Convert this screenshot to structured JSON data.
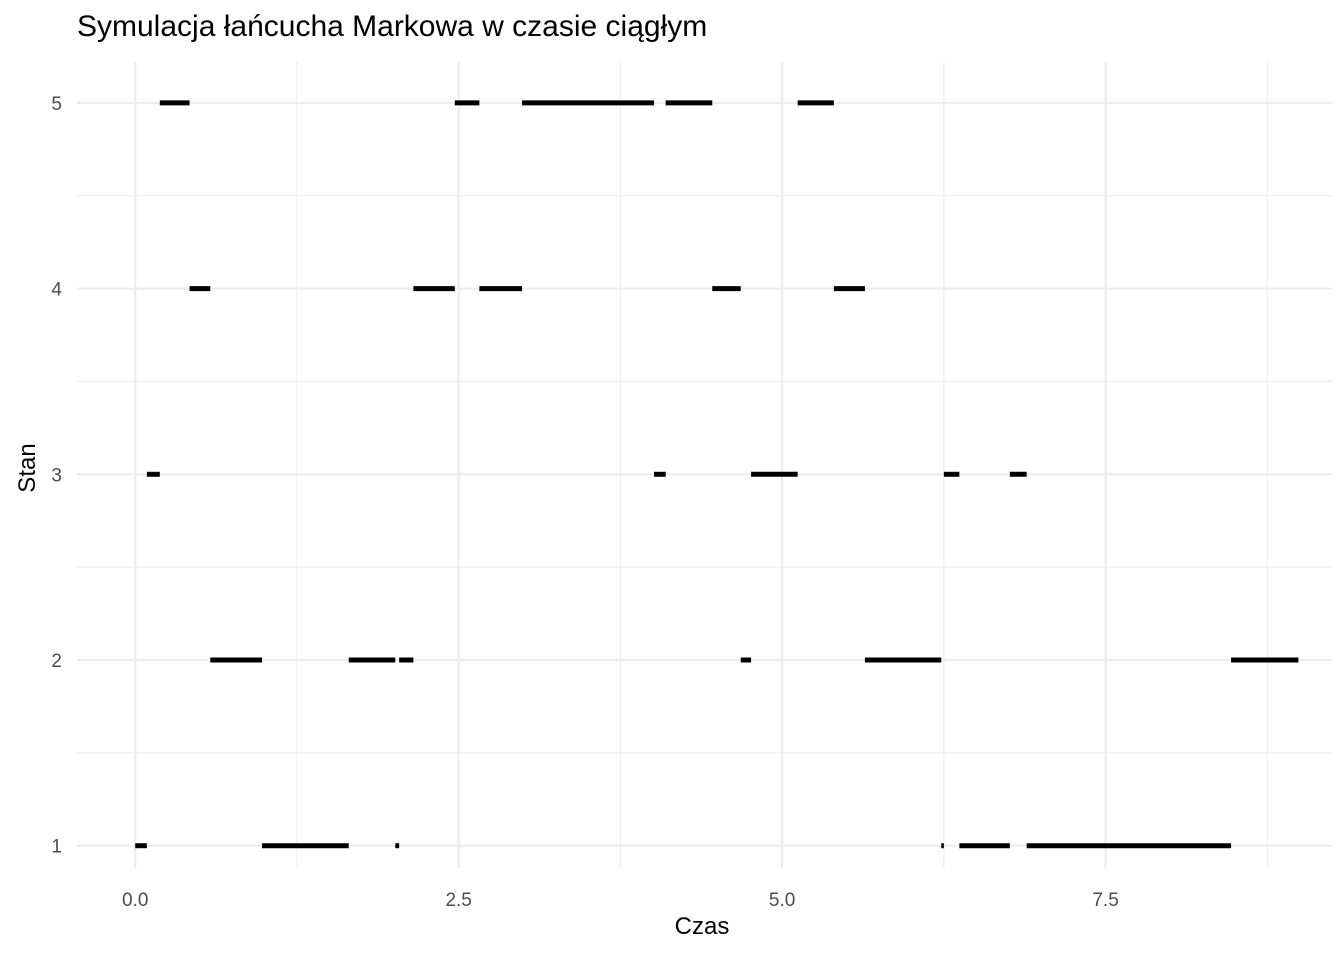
{
  "chart_data": {
    "type": "segment",
    "title": "Symulacja łańcucha Markowa w czasie ciągłym",
    "xlabel": "Czas",
    "ylabel": "Stan",
    "xlim": [
      -0.45,
      9.25
    ],
    "ylim": [
      0.88,
      5.22
    ],
    "x_ticks": [
      0.0,
      2.5,
      5.0,
      7.5
    ],
    "x_tick_labels": [
      "0.0",
      "2.5",
      "5.0",
      "7.5"
    ],
    "y_ticks": [
      1,
      2,
      3,
      4,
      5
    ],
    "y_tick_labels": [
      "1",
      "2",
      "3",
      "4",
      "5"
    ],
    "grid": true,
    "legend": "none",
    "segment_color": "#000000",
    "grid_color": "#ebebeb",
    "segments": [
      {
        "x_start": 0.0,
        "x_end": 0.09,
        "state": 1
      },
      {
        "x_start": 0.09,
        "x_end": 0.19,
        "state": 3
      },
      {
        "x_start": 0.19,
        "x_end": 0.42,
        "state": 5
      },
      {
        "x_start": 0.42,
        "x_end": 0.58,
        "state": 4
      },
      {
        "x_start": 0.58,
        "x_end": 0.98,
        "state": 2
      },
      {
        "x_start": 0.98,
        "x_end": 1.65,
        "state": 1
      },
      {
        "x_start": 1.65,
        "x_end": 2.01,
        "state": 2
      },
      {
        "x_start": 2.01,
        "x_end": 2.04,
        "state": 1
      },
      {
        "x_start": 2.04,
        "x_end": 2.15,
        "state": 2
      },
      {
        "x_start": 2.15,
        "x_end": 2.47,
        "state": 4
      },
      {
        "x_start": 2.47,
        "x_end": 2.66,
        "state": 5
      },
      {
        "x_start": 2.66,
        "x_end": 2.99,
        "state": 4
      },
      {
        "x_start": 2.99,
        "x_end": 4.01,
        "state": 5
      },
      {
        "x_start": 4.01,
        "x_end": 4.1,
        "state": 3
      },
      {
        "x_start": 4.1,
        "x_end": 4.46,
        "state": 5
      },
      {
        "x_start": 4.46,
        "x_end": 4.68,
        "state": 4
      },
      {
        "x_start": 4.68,
        "x_end": 4.76,
        "state": 2
      },
      {
        "x_start": 4.76,
        "x_end": 5.12,
        "state": 3
      },
      {
        "x_start": 5.12,
        "x_end": 5.4,
        "state": 5
      },
      {
        "x_start": 5.4,
        "x_end": 5.64,
        "state": 4
      },
      {
        "x_start": 5.64,
        "x_end": 6.23,
        "state": 2
      },
      {
        "x_start": 6.23,
        "x_end": 6.25,
        "state": 1
      },
      {
        "x_start": 6.25,
        "x_end": 6.37,
        "state": 3
      },
      {
        "x_start": 6.37,
        "x_end": 6.76,
        "state": 1
      },
      {
        "x_start": 6.76,
        "x_end": 6.89,
        "state": 3
      },
      {
        "x_start": 6.89,
        "x_end": 8.47,
        "state": 1
      },
      {
        "x_start": 8.47,
        "x_end": 8.99,
        "state": 2
      }
    ]
  }
}
